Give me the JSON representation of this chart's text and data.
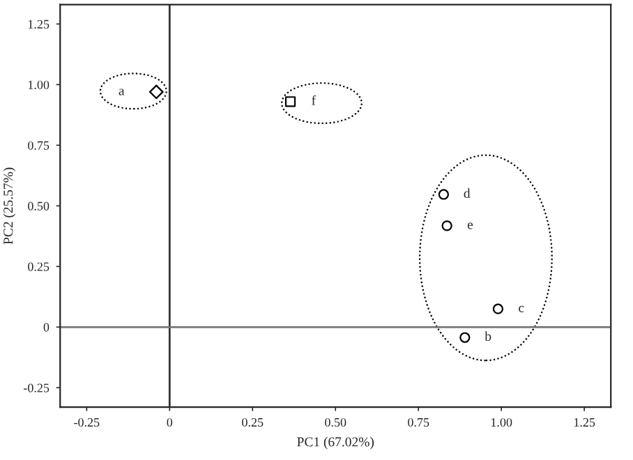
{
  "chart_data": {
    "type": "scatter",
    "xlabel": "PC1 (67.02%)",
    "ylabel": "PC2 (25.57%)",
    "series": [
      {
        "x": [
          -0.04
        ],
        "values": [
          0.97
        ],
        "color": "#000000",
        "marker": "diamond"
      },
      {
        "x": [
          0.364
        ],
        "values": [
          0.93
        ],
        "color": "#000000",
        "marker": "square"
      },
      {
        "x": [
          0.826,
          0.836,
          0.99,
          0.89
        ],
        "values": [
          0.547,
          0.418,
          0.075,
          -0.043
        ],
        "color": "#000000",
        "marker": "circle"
      }
    ],
    "annotations": [
      {
        "text": "a",
        "x": -0.04,
        "y": 0.97
      },
      {
        "text": "f",
        "x": 0.364,
        "y": 0.93
      },
      {
        "text": "d",
        "x": 0.826,
        "y": 0.547
      },
      {
        "text": "e",
        "x": 0.836,
        "y": 0.418
      },
      {
        "text": "c",
        "x": 0.99,
        "y": 0.075
      },
      {
        "text": "b",
        "x": 0.89,
        "y": -0.043
      }
    ],
    "ref_lines": [
      {
        "axis": "x",
        "value": 0,
        "color": "#333333"
      },
      {
        "axis": "y",
        "value": 0,
        "color": "#777777"
      }
    ],
    "xlim": [
      -0.33,
      1.33
    ],
    "ylim": [
      -0.33,
      1.33
    ],
    "xticks": [
      {
        "value": -0.25,
        "label": "-0.25"
      },
      0,
      {
        "value": 0.25,
        "label": "0.25"
      },
      {
        "value": 0.5,
        "label": "0.50"
      },
      {
        "value": 0.75,
        "label": "0.75"
      },
      {
        "value": 1,
        "label": "1.00"
      },
      {
        "value": 1.25,
        "label": "1.25"
      }
    ],
    "yticks": [
      {
        "value": -0.25,
        "label": "-0.25"
      },
      0,
      {
        "value": 0.25,
        "label": "0.25"
      },
      {
        "value": 0.5,
        "label": "0.50"
      },
      {
        "value": 0.75,
        "label": "0.75"
      },
      {
        "value": 1,
        "label": "1.00"
      },
      {
        "value": 1.25,
        "label": "1.25"
      }
    ],
    "grid": false,
    "legend": false
  }
}
